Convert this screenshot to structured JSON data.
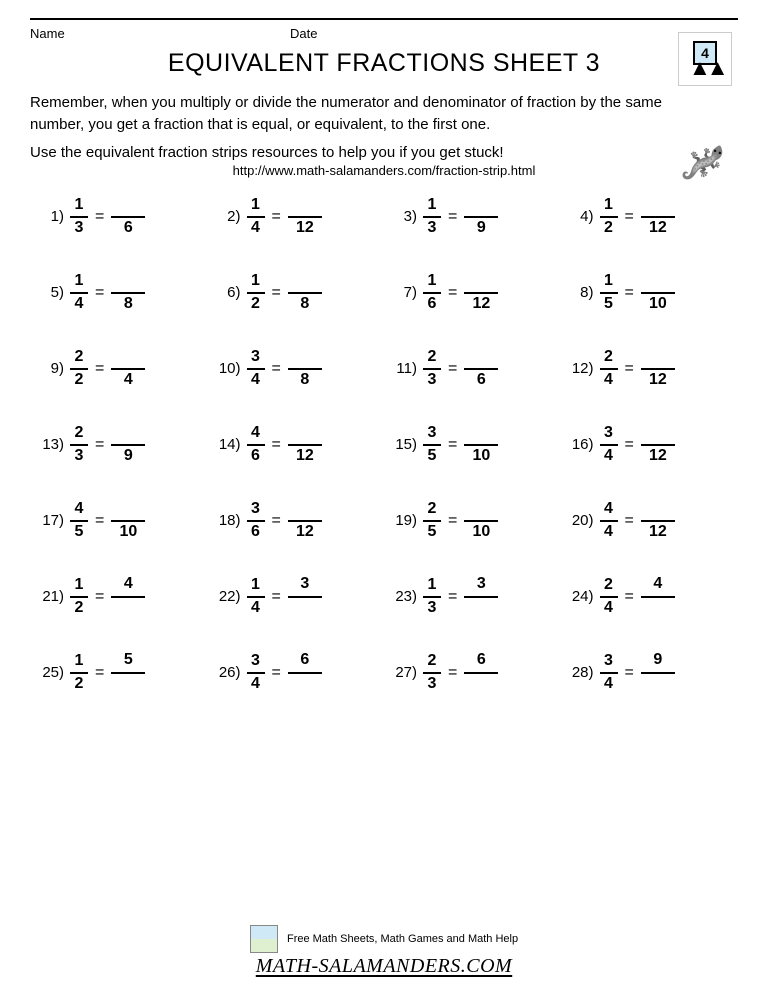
{
  "meta": {
    "name_label": "Name",
    "date_label": "Date"
  },
  "logo": {
    "number": "4"
  },
  "title": "EQUIVALENT FRACTIONS SHEET 3",
  "intro": "Remember, when you multiply or divide the numerator and denominator of fraction by the same number, you get a fraction that is equal, or equivalent, to the first one.",
  "intro2": "Use the equivalent fraction strips resources to help you if you get stuck!",
  "url": "http://www.math-salamanders.com/fraction-strip.html",
  "problems": [
    {
      "n": "1",
      "num": "1",
      "den": "3",
      "anum": "",
      "aden": "6"
    },
    {
      "n": "2",
      "num": "1",
      "den": "4",
      "anum": "",
      "aden": "12"
    },
    {
      "n": "3",
      "num": "1",
      "den": "3",
      "anum": "",
      "aden": "9"
    },
    {
      "n": "4",
      "num": "1",
      "den": "2",
      "anum": "",
      "aden": "12"
    },
    {
      "n": "5",
      "num": "1",
      "den": "4",
      "anum": "",
      "aden": "8"
    },
    {
      "n": "6",
      "num": "1",
      "den": "2",
      "anum": "",
      "aden": "8"
    },
    {
      "n": "7",
      "num": "1",
      "den": "6",
      "anum": "",
      "aden": "12"
    },
    {
      "n": "8",
      "num": "1",
      "den": "5",
      "anum": "",
      "aden": "10"
    },
    {
      "n": "9",
      "num": "2",
      "den": "2",
      "anum": "",
      "aden": "4"
    },
    {
      "n": "10",
      "num": "3",
      "den": "4",
      "anum": "",
      "aden": "8"
    },
    {
      "n": "11",
      "num": "2",
      "den": "3",
      "anum": "",
      "aden": "6"
    },
    {
      "n": "12",
      "num": "2",
      "den": "4",
      "anum": "",
      "aden": "12"
    },
    {
      "n": "13",
      "num": "2",
      "den": "3",
      "anum": "",
      "aden": "9"
    },
    {
      "n": "14",
      "num": "4",
      "den": "6",
      "anum": "",
      "aden": "12"
    },
    {
      "n": "15",
      "num": "3",
      "den": "5",
      "anum": "",
      "aden": "10"
    },
    {
      "n": "16",
      "num": "3",
      "den": "4",
      "anum": "",
      "aden": "12"
    },
    {
      "n": "17",
      "num": "4",
      "den": "5",
      "anum": "",
      "aden": "10"
    },
    {
      "n": "18",
      "num": "3",
      "den": "6",
      "anum": "",
      "aden": "12"
    },
    {
      "n": "19",
      "num": "2",
      "den": "5",
      "anum": "",
      "aden": "10"
    },
    {
      "n": "20",
      "num": "4",
      "den": "4",
      "anum": "",
      "aden": "12"
    },
    {
      "n": "21",
      "num": "1",
      "den": "2",
      "anum": "4",
      "aden": ""
    },
    {
      "n": "22",
      "num": "1",
      "den": "4",
      "anum": "3",
      "aden": ""
    },
    {
      "n": "23",
      "num": "1",
      "den": "3",
      "anum": "3",
      "aden": ""
    },
    {
      "n": "24",
      "num": "2",
      "den": "4",
      "anum": "4",
      "aden": ""
    },
    {
      "n": "25",
      "num": "1",
      "den": "2",
      "anum": "5",
      "aden": ""
    },
    {
      "n": "26",
      "num": "3",
      "den": "4",
      "anum": "6",
      "aden": ""
    },
    {
      "n": "27",
      "num": "2",
      "den": "3",
      "anum": "6",
      "aden": ""
    },
    {
      "n": "28",
      "num": "3",
      "den": "4",
      "anum": "9",
      "aden": ""
    }
  ],
  "footer": {
    "tag": "Free Math Sheets, Math Games and Math Help",
    "brand": "MATH-SALAMANDERS.COM"
  }
}
